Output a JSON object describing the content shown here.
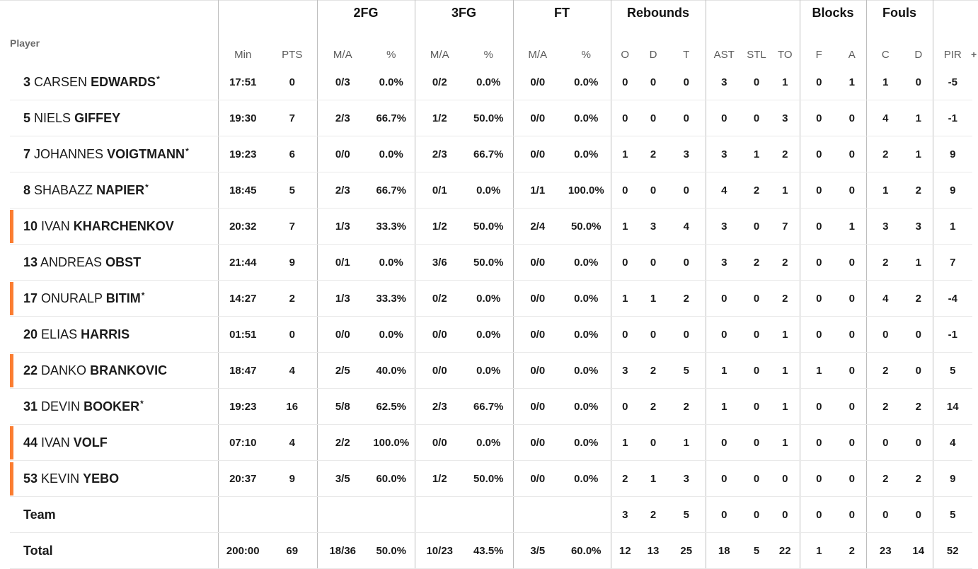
{
  "group_headers": {
    "fg2": "2FG",
    "fg3": "3FG",
    "ft": "FT",
    "rebounds": "Rebounds",
    "blocks": "Blocks",
    "fouls": "Fouls"
  },
  "columns": {
    "player": "Player",
    "min": "Min",
    "pts": "PTS",
    "fg2_ma": "M/A",
    "fg2_pct": "%",
    "fg3_ma": "M/A",
    "fg3_pct": "%",
    "ft_ma": "M/A",
    "ft_pct": "%",
    "reb_o": "O",
    "reb_d": "D",
    "reb_t": "T",
    "ast": "AST",
    "stl": "STL",
    "to": "TO",
    "blk_f": "F",
    "blk_a": "A",
    "foul_c": "C",
    "foul_d": "D",
    "pir": "PIR",
    "plusminus_trunc": "+"
  },
  "players": [
    {
      "number": "3",
      "first": "CARSEN",
      "last": "EDWARDS",
      "starter": true,
      "flag": false,
      "min": "17:51",
      "pts": "0",
      "fg2": "0/3",
      "fg2p": "0.0%",
      "fg3": "0/2",
      "fg3p": "0.0%",
      "ft": "0/0",
      "ftp": "0.0%",
      "o": "0",
      "d": "0",
      "t": "0",
      "ast": "3",
      "stl": "0",
      "to": "1",
      "bf": "0",
      "ba": "1",
      "fc": "1",
      "fd": "0",
      "pir": "-5"
    },
    {
      "number": "5",
      "first": "NIELS",
      "last": "GIFFEY",
      "starter": false,
      "flag": false,
      "min": "19:30",
      "pts": "7",
      "fg2": "2/3",
      "fg2p": "66.7%",
      "fg3": "1/2",
      "fg3p": "50.0%",
      "ft": "0/0",
      "ftp": "0.0%",
      "o": "0",
      "d": "0",
      "t": "0",
      "ast": "0",
      "stl": "0",
      "to": "3",
      "bf": "0",
      "ba": "0",
      "fc": "4",
      "fd": "1",
      "pir": "-1"
    },
    {
      "number": "7",
      "first": "JOHANNES",
      "last": "VOIGTMANN",
      "starter": true,
      "flag": false,
      "min": "19:23",
      "pts": "6",
      "fg2": "0/0",
      "fg2p": "0.0%",
      "fg3": "2/3",
      "fg3p": "66.7%",
      "ft": "0/0",
      "ftp": "0.0%",
      "o": "1",
      "d": "2",
      "t": "3",
      "ast": "3",
      "stl": "1",
      "to": "2",
      "bf": "0",
      "ba": "0",
      "fc": "2",
      "fd": "1",
      "pir": "9"
    },
    {
      "number": "8",
      "first": "SHABAZZ",
      "last": "NAPIER",
      "starter": true,
      "flag": false,
      "min": "18:45",
      "pts": "5",
      "fg2": "2/3",
      "fg2p": "66.7%",
      "fg3": "0/1",
      "fg3p": "0.0%",
      "ft": "1/1",
      "ftp": "100.0%",
      "o": "0",
      "d": "0",
      "t": "0",
      "ast": "4",
      "stl": "2",
      "to": "1",
      "bf": "0",
      "ba": "0",
      "fc": "1",
      "fd": "2",
      "pir": "9"
    },
    {
      "number": "10",
      "first": "IVAN",
      "last": "KHARCHENKOV",
      "starter": false,
      "flag": true,
      "min": "20:32",
      "pts": "7",
      "fg2": "1/3",
      "fg2p": "33.3%",
      "fg3": "1/2",
      "fg3p": "50.0%",
      "ft": "2/4",
      "ftp": "50.0%",
      "o": "1",
      "d": "3",
      "t": "4",
      "ast": "3",
      "stl": "0",
      "to": "7",
      "bf": "0",
      "ba": "1",
      "fc": "3",
      "fd": "3",
      "pir": "1"
    },
    {
      "number": "13",
      "first": "ANDREAS",
      "last": "OBST",
      "starter": false,
      "flag": false,
      "min": "21:44",
      "pts": "9",
      "fg2": "0/1",
      "fg2p": "0.0%",
      "fg3": "3/6",
      "fg3p": "50.0%",
      "ft": "0/0",
      "ftp": "0.0%",
      "o": "0",
      "d": "0",
      "t": "0",
      "ast": "3",
      "stl": "2",
      "to": "2",
      "bf": "0",
      "ba": "0",
      "fc": "2",
      "fd": "1",
      "pir": "7"
    },
    {
      "number": "17",
      "first": "ONURALP",
      "last": "BITIM",
      "starter": true,
      "flag": true,
      "min": "14:27",
      "pts": "2",
      "fg2": "1/3",
      "fg2p": "33.3%",
      "fg3": "0/2",
      "fg3p": "0.0%",
      "ft": "0/0",
      "ftp": "0.0%",
      "o": "1",
      "d": "1",
      "t": "2",
      "ast": "0",
      "stl": "0",
      "to": "2",
      "bf": "0",
      "ba": "0",
      "fc": "4",
      "fd": "2",
      "pir": "-4"
    },
    {
      "number": "20",
      "first": "ELIAS",
      "last": "HARRIS",
      "starter": false,
      "flag": false,
      "min": "01:51",
      "pts": "0",
      "fg2": "0/0",
      "fg2p": "0.0%",
      "fg3": "0/0",
      "fg3p": "0.0%",
      "ft": "0/0",
      "ftp": "0.0%",
      "o": "0",
      "d": "0",
      "t": "0",
      "ast": "0",
      "stl": "0",
      "to": "1",
      "bf": "0",
      "ba": "0",
      "fc": "0",
      "fd": "0",
      "pir": "-1"
    },
    {
      "number": "22",
      "first": "DANKO",
      "last": "BRANKOVIC",
      "starter": false,
      "flag": true,
      "min": "18:47",
      "pts": "4",
      "fg2": "2/5",
      "fg2p": "40.0%",
      "fg3": "0/0",
      "fg3p": "0.0%",
      "ft": "0/0",
      "ftp": "0.0%",
      "o": "3",
      "d": "2",
      "t": "5",
      "ast": "1",
      "stl": "0",
      "to": "1",
      "bf": "1",
      "ba": "0",
      "fc": "2",
      "fd": "0",
      "pir": "5"
    },
    {
      "number": "31",
      "first": "DEVIN",
      "last": "BOOKER",
      "starter": true,
      "flag": false,
      "min": "19:23",
      "pts": "16",
      "fg2": "5/8",
      "fg2p": "62.5%",
      "fg3": "2/3",
      "fg3p": "66.7%",
      "ft": "0/0",
      "ftp": "0.0%",
      "o": "0",
      "d": "2",
      "t": "2",
      "ast": "1",
      "stl": "0",
      "to": "1",
      "bf": "0",
      "ba": "0",
      "fc": "2",
      "fd": "2",
      "pir": "14"
    },
    {
      "number": "44",
      "first": "IVAN",
      "last": "VOLF",
      "starter": false,
      "flag": true,
      "min": "07:10",
      "pts": "4",
      "fg2": "2/2",
      "fg2p": "100.0%",
      "fg3": "0/0",
      "fg3p": "0.0%",
      "ft": "0/0",
      "ftp": "0.0%",
      "o": "1",
      "d": "0",
      "t": "1",
      "ast": "0",
      "stl": "0",
      "to": "1",
      "bf": "0",
      "ba": "0",
      "fc": "0",
      "fd": "0",
      "pir": "4"
    },
    {
      "number": "53",
      "first": "KEVIN",
      "last": "YEBO",
      "starter": false,
      "flag": true,
      "min": "20:37",
      "pts": "9",
      "fg2": "3/5",
      "fg2p": "60.0%",
      "fg3": "1/2",
      "fg3p": "50.0%",
      "ft": "0/0",
      "ftp": "0.0%",
      "o": "2",
      "d": "1",
      "t": "3",
      "ast": "0",
      "stl": "0",
      "to": "0",
      "bf": "0",
      "ba": "0",
      "fc": "2",
      "fd": "2",
      "pir": "9"
    }
  ],
  "team": {
    "label": "Team",
    "min": "",
    "pts": "",
    "fg2": "",
    "fg2p": "",
    "fg3": "",
    "fg3p": "",
    "ft": "",
    "ftp": "",
    "o": "3",
    "d": "2",
    "t": "5",
    "ast": "0",
    "stl": "0",
    "to": "0",
    "bf": "0",
    "ba": "0",
    "fc": "0",
    "fd": "0",
    "pir": "5"
  },
  "total": {
    "label": "Total",
    "min": "200:00",
    "pts": "69",
    "fg2": "18/36",
    "fg2p": "50.0%",
    "fg3": "10/23",
    "fg3p": "43.5%",
    "ft": "3/5",
    "ftp": "60.0%",
    "o": "12",
    "d": "13",
    "t": "25",
    "ast": "18",
    "stl": "5",
    "to": "22",
    "bf": "1",
    "ba": "2",
    "fc": "23",
    "fd": "14",
    "pir": "52"
  },
  "colors": {
    "flag": "#fb7d31",
    "divider": "#bdbdbd",
    "row_border": "#e9e9e9"
  }
}
